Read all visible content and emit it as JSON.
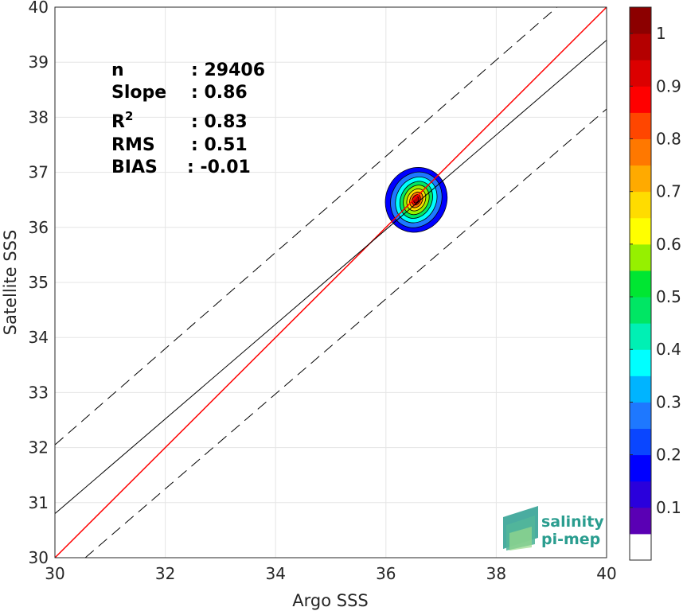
{
  "chart_data": {
    "type": "contour-scatter",
    "xlabel": "Argo SSS",
    "ylabel": "Satellite SSS",
    "xlim": [
      30,
      40
    ],
    "ylim": [
      30,
      40
    ],
    "xticks": [
      30,
      32,
      34,
      36,
      38,
      40
    ],
    "yticks": [
      30,
      31,
      32,
      33,
      34,
      35,
      36,
      37,
      38,
      39,
      40
    ],
    "grid": true,
    "stats": [
      {
        "label": "n",
        "value": ": 29406"
      },
      {
        "label": "Slope",
        "value": ": 0.86"
      },
      {
        "label": "R",
        "sup": "2",
        "value": ": 0.83"
      },
      {
        "label": "RMS",
        "value": ": 0.51"
      },
      {
        "label": "BIAS",
        "value": ": -0.01"
      }
    ],
    "lines": [
      {
        "name": "1:1",
        "color": "#ff0000",
        "style": "solid",
        "points": [
          [
            30,
            30
          ],
          [
            40,
            40
          ]
        ]
      },
      {
        "name": "fit",
        "color": "#000000",
        "style": "solid",
        "points": [
          [
            30,
            30.8
          ],
          [
            40,
            39.4
          ]
        ]
      },
      {
        "name": "upper",
        "color": "#000000",
        "style": "dashed",
        "points": [
          [
            30,
            32.05
          ],
          [
            39.1,
            40
          ]
        ]
      },
      {
        "name": "lower",
        "color": "#000000",
        "style": "dashed",
        "points": [
          [
            30.55,
            30
          ],
          [
            40,
            38.15
          ]
        ]
      }
    ],
    "density": {
      "center": [
        36.55,
        36.5
      ],
      "levels": [
        {
          "level": 0.1,
          "rx": 0.55,
          "ry": 0.6
        },
        {
          "level": 0.2,
          "rx": 0.45,
          "ry": 0.52
        },
        {
          "level": 0.3,
          "rx": 0.36,
          "ry": 0.43
        },
        {
          "level": 0.4,
          "rx": 0.28,
          "ry": 0.35
        },
        {
          "level": 0.5,
          "rx": 0.22,
          "ry": 0.28
        },
        {
          "level": 0.6,
          "rx": 0.16,
          "ry": 0.21
        },
        {
          "level": 0.7,
          "rx": 0.11,
          "ry": 0.15
        },
        {
          "level": 0.8,
          "rx": 0.07,
          "ry": 0.1
        },
        {
          "level": 0.9,
          "rx": 0.04,
          "ry": 0.06
        }
      ]
    },
    "colorbar": {
      "ticks": [
        "0.1",
        "0.2",
        "0.3",
        "0.4",
        "0.5",
        "0.6",
        "0.7",
        "0.8",
        "0.9",
        "1"
      ],
      "colors": [
        "#ffffff",
        "#5a00b4",
        "#2a00dc",
        "#0000ff",
        "#0a46ff",
        "#1e78ff",
        "#00b4ff",
        "#00ffff",
        "#00f0b4",
        "#00e664",
        "#00e632",
        "#96f000",
        "#ffff00",
        "#ffdc00",
        "#ffaa00",
        "#ff7800",
        "#ff4600",
        "#ff0000",
        "#dc0000",
        "#b40000",
        "#8c0000"
      ]
    }
  },
  "logo": {
    "line1": "salinity",
    "line2": "pi-mep"
  }
}
